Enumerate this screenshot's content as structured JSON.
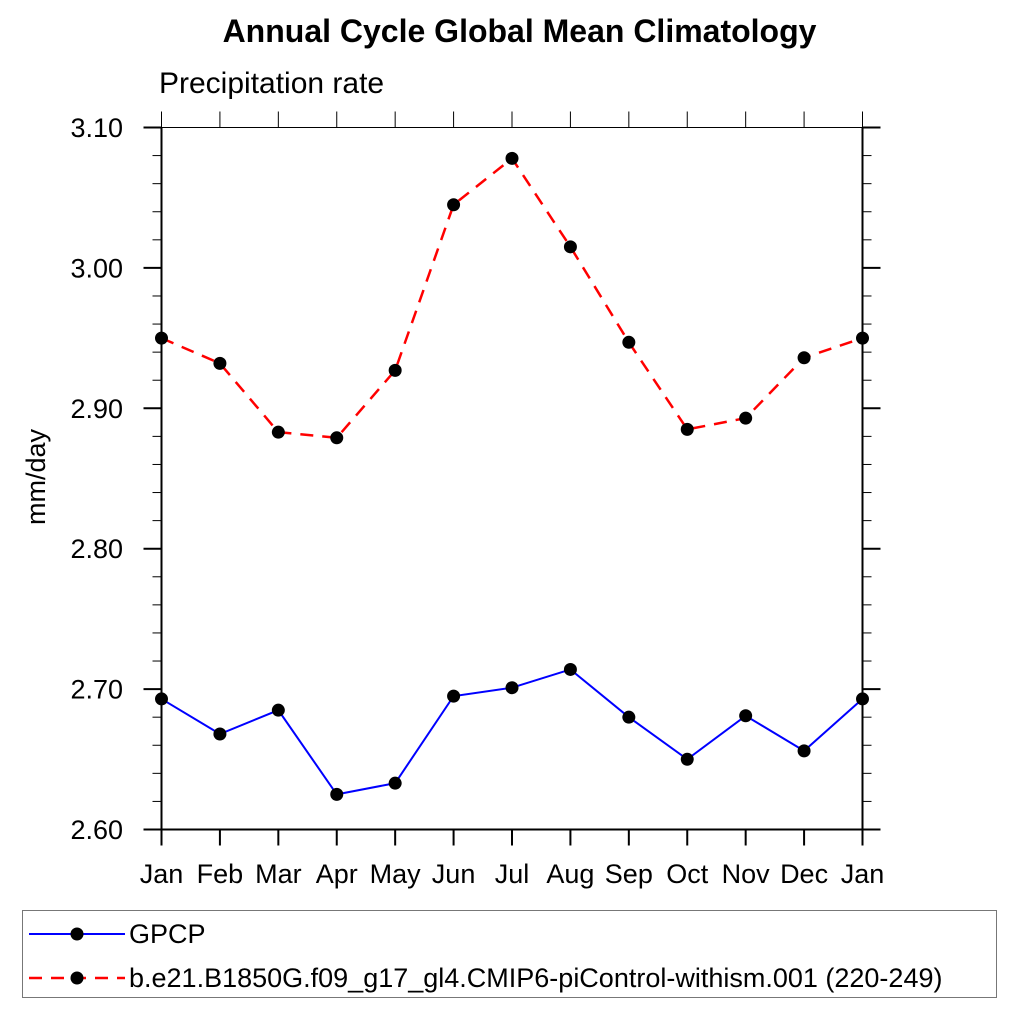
{
  "title": "Annual Cycle Global Mean Climatology",
  "chart_data": {
    "type": "line",
    "title": "Annual Cycle Global Mean Climatology",
    "subtitle": "Precipitation rate",
    "ylabel": "mm/day",
    "xlabel": "",
    "categories": [
      "Jan",
      "Feb",
      "Mar",
      "Apr",
      "May",
      "Jun",
      "Jul",
      "Aug",
      "Sep",
      "Oct",
      "Nov",
      "Dec",
      "Jan"
    ],
    "ylim": [
      2.6,
      3.1
    ],
    "ytick_major_step": 0.1,
    "ytick_minor_step": 0.02,
    "ytick_labels": [
      "2.60",
      "2.70",
      "2.80",
      "2.90",
      "3.00",
      "3.10"
    ],
    "grid": false,
    "legend_position": "bottom",
    "axis_color": "#000000",
    "marker_color": "#000000",
    "series": [
      {
        "name": "GPCP",
        "color": "#0000ff",
        "style": "solid",
        "marker": "circle",
        "values": [
          2.693,
          2.668,
          2.685,
          2.625,
          2.633,
          2.695,
          2.701,
          2.714,
          2.68,
          2.65,
          2.681,
          2.656,
          2.693
        ]
      },
      {
        "name": "b.e21.B1850G.f09_g17_gl4.CMIP6-piControl-withism.001 (220-249)",
        "color": "#ff0000",
        "style": "dashed",
        "marker": "circle",
        "values": [
          2.95,
          2.932,
          2.883,
          2.879,
          2.927,
          3.045,
          3.078,
          3.015,
          2.947,
          2.885,
          2.893,
          2.936,
          2.95
        ]
      }
    ]
  }
}
